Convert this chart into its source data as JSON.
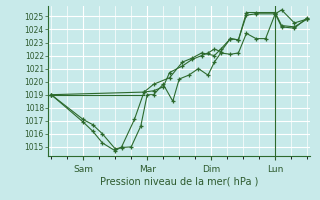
{
  "bg_color": "#c8eaea",
  "grid_color": "#ffffff",
  "line_color": "#2d6a2d",
  "ylim": [
    1014.3,
    1025.8
  ],
  "yticks": [
    1015,
    1016,
    1017,
    1018,
    1019,
    1020,
    1021,
    1022,
    1023,
    1024,
    1025
  ],
  "xlabel": "Pression niveau de la mer( hPa )",
  "xtick_labels": [
    "Sam",
    "Mar",
    "Dim",
    "Lun"
  ],
  "xtick_positions": [
    1,
    3,
    5,
    7
  ],
  "xlim": [
    -0.1,
    8.1
  ],
  "vline_x": 7,
  "line1_x": [
    0,
    1,
    1.3,
    1.6,
    2.0,
    2.2,
    2.5,
    2.8,
    3.0,
    3.2,
    3.5,
    3.8,
    4.0,
    4.3,
    4.6,
    4.9,
    5.1,
    5.3,
    5.6,
    5.85,
    6.1,
    6.4,
    6.7,
    7.0,
    7.2,
    7.6,
    8.0
  ],
  "line1_y": [
    1019.0,
    1017.1,
    1016.7,
    1016.0,
    1014.85,
    1014.95,
    1015.0,
    1016.6,
    1019.0,
    1019.0,
    1019.8,
    1018.5,
    1020.2,
    1020.5,
    1021.0,
    1020.5,
    1021.5,
    1022.2,
    1022.1,
    1022.2,
    1023.7,
    1023.3,
    1023.3,
    1025.2,
    1025.5,
    1024.5,
    1024.8
  ],
  "line2_x": [
    0,
    1,
    1.3,
    1.6,
    2.0,
    2.2,
    2.6,
    2.9,
    3.2,
    3.5,
    3.7,
    4.1,
    4.4,
    4.7,
    4.9,
    5.1,
    5.3,
    5.6,
    5.85,
    6.1,
    6.4,
    7.0,
    7.2,
    7.6,
    8.0
  ],
  "line2_y": [
    1019.0,
    1016.9,
    1016.2,
    1015.3,
    1014.7,
    1015.0,
    1017.1,
    1019.2,
    1019.3,
    1019.6,
    1020.7,
    1021.2,
    1021.7,
    1022.0,
    1022.2,
    1022.5,
    1022.3,
    1023.3,
    1023.2,
    1025.3,
    1025.3,
    1025.3,
    1024.3,
    1024.2,
    1024.8
  ],
  "line3_x": [
    0,
    2.9,
    3.2,
    3.7,
    4.1,
    4.4,
    4.7,
    5.1,
    5.3,
    5.6,
    5.85,
    6.1,
    6.4,
    7.0,
    7.2,
    7.6,
    8.0
  ],
  "line3_y": [
    1019.0,
    1019.2,
    1019.8,
    1020.3,
    1021.5,
    1021.8,
    1022.2,
    1022.0,
    1022.5,
    1023.3,
    1023.2,
    1025.1,
    1025.2,
    1025.2,
    1024.2,
    1024.1,
    1024.9
  ]
}
